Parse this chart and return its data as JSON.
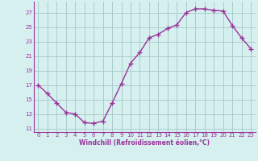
{
  "x": [
    0,
    1,
    2,
    3,
    4,
    5,
    6,
    7,
    8,
    9,
    10,
    11,
    12,
    13,
    14,
    15,
    16,
    17,
    18,
    19,
    20,
    21,
    22,
    23
  ],
  "y": [
    17,
    15.8,
    14.5,
    13.2,
    13.0,
    11.8,
    11.7,
    12.0,
    14.5,
    17.2,
    20.0,
    21.5,
    23.5,
    24.0,
    24.8,
    25.3,
    27.0,
    27.5,
    27.5,
    27.3,
    27.2,
    25.2,
    23.5,
    22.0
  ],
  "line_color": "#993399",
  "marker": "+",
  "marker_size": 4,
  "marker_color": "#993399",
  "bg_color": "#d6f0f0",
  "grid_color": "#aacccc",
  "xlabel": "Windchill (Refroidissement éolien,°C)",
  "xlabel_color": "#993399",
  "ylabel_ticks": [
    11,
    13,
    15,
    17,
    19,
    21,
    23,
    25,
    27
  ],
  "ylim": [
    10.5,
    28.5
  ],
  "xlim": [
    -0.5,
    23.5
  ],
  "tick_color": "#993399",
  "xtick_fontsize": 5,
  "ytick_fontsize": 5,
  "xlabel_fontsize": 5.5,
  "linewidth": 1.0
}
